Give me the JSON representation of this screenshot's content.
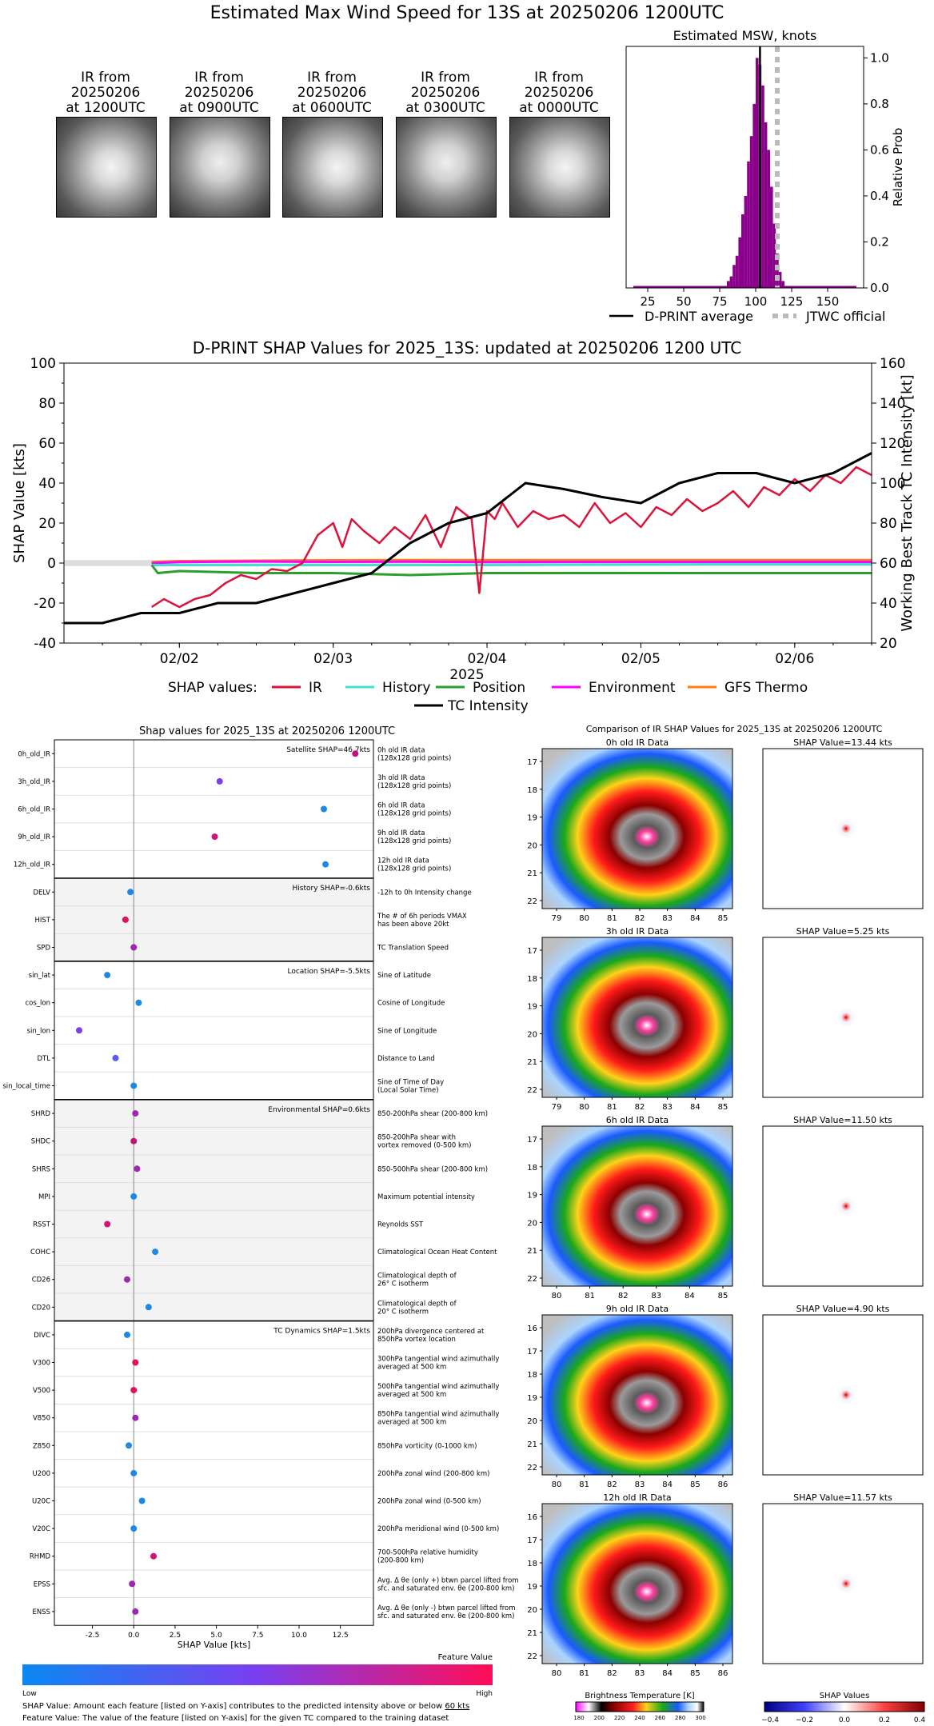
{
  "main_title": "Estimated Max Wind Speed for 13S at 20250206 1200UTC",
  "satellite_panels": [
    {
      "l1": "IR from",
      "l2": "20250206",
      "l3": "at 1200UTC"
    },
    {
      "l1": "IR from",
      "l2": "20250206",
      "l3": "at 0900UTC"
    },
    {
      "l1": "IR from",
      "l2": "20250206",
      "l3": "at 0600UTC"
    },
    {
      "l1": "IR from",
      "l2": "20250206",
      "l3": "at 0300UTC"
    },
    {
      "l1": "IR from",
      "l2": "20250206",
      "l3": "at 0000UTC"
    }
  ],
  "chart_data": [
    {
      "type": "bar",
      "title": "Estimated MSW, knots",
      "ylabel": "Relative Prob",
      "xlim": [
        10,
        175
      ],
      "ylim": [
        0,
        1.05
      ],
      "xticks": [
        "25",
        "50",
        "75",
        "100",
        "125",
        "150"
      ],
      "yticks": [
        "0.0",
        "0.2",
        "0.4",
        "0.6",
        "0.8",
        "1.0"
      ],
      "bin_width": 2,
      "bins": [
        80,
        82,
        84,
        86,
        88,
        90,
        92,
        94,
        96,
        98,
        100,
        102,
        104,
        106,
        108,
        110,
        112,
        114,
        116,
        118
      ],
      "values": [
        0.03,
        0.05,
        0.1,
        0.14,
        0.22,
        0.32,
        0.4,
        0.55,
        0.66,
        0.8,
        1.0,
        0.97,
        0.88,
        0.72,
        0.6,
        0.44,
        0.28,
        0.15,
        0.07,
        0.03
      ],
      "baseline_range": [
        15,
        170
      ],
      "dprint_average": 103,
      "jtwc_official": 115,
      "legend": [
        "D-PRINT average",
        "JTWC official"
      ],
      "color": "#8b008b"
    },
    {
      "type": "line",
      "title": "D-PRINT SHAP Values for 2025_13S: updated at 20250206 1200 UTC",
      "xlabel": "2025",
      "ylabel": "SHAP Value [kts]",
      "y2label": "Working Best Track TC Intensity [kt]",
      "xlim": [
        1.25,
        6.5
      ],
      "ylim": [
        -40,
        100
      ],
      "y2lim": [
        20,
        160
      ],
      "xticks": [
        "02/02",
        "02/03",
        "02/04",
        "02/05",
        "02/06"
      ],
      "yticks": [
        "-40",
        "-20",
        "0",
        "20",
        "40",
        "60",
        "80",
        "100"
      ],
      "y2ticks": [
        "20",
        "40",
        "60",
        "80",
        "100",
        "120",
        "140",
        "160"
      ],
      "legend_prefix": "SHAP values:",
      "series": [
        {
          "name": "IR",
          "color": "#dc143c",
          "x": [
            1.82,
            1.9,
            2.0,
            2.1,
            2.2,
            2.3,
            2.4,
            2.5,
            2.6,
            2.7,
            2.8,
            2.9,
            3.0,
            3.06,
            3.12,
            3.2,
            3.3,
            3.4,
            3.5,
            3.6,
            3.7,
            3.8,
            3.9,
            3.95,
            4.0,
            4.05,
            4.1,
            4.2,
            4.3,
            4.4,
            4.5,
            4.6,
            4.7,
            4.8,
            4.9,
            5.0,
            5.1,
            5.2,
            5.3,
            5.4,
            5.5,
            5.6,
            5.7,
            5.8,
            5.9,
            6.0,
            6.1,
            6.2,
            6.3,
            6.4,
            6.5
          ],
          "y": [
            -22,
            -18,
            -22,
            -18,
            -16,
            -10,
            -6,
            -8,
            -3,
            -4,
            0,
            14,
            20,
            8,
            22,
            16,
            10,
            18,
            12,
            24,
            8,
            28,
            22,
            -15,
            26,
            22,
            30,
            18,
            26,
            22,
            24,
            18,
            30,
            20,
            25,
            18,
            28,
            24,
            32,
            26,
            30,
            36,
            28,
            38,
            34,
            42,
            36,
            44,
            40,
            48,
            44
          ]
        },
        {
          "name": "History",
          "color": "#40e0d0",
          "x": [
            1.82,
            2.0,
            2.5,
            3.0,
            3.5,
            4.0,
            4.5,
            5.0,
            5.5,
            6.0,
            6.5
          ],
          "y": [
            -1,
            -1,
            -1,
            -1,
            -1,
            -1,
            -0.8,
            -0.7,
            -0.6,
            -0.6,
            -0.6
          ]
        },
        {
          "name": "Position",
          "color": "#2ca02c",
          "x": [
            1.82,
            1.86,
            2.0,
            2.5,
            3.0,
            3.5,
            4.0,
            4.5,
            5.0,
            5.5,
            6.0,
            6.5
          ],
          "y": [
            -1,
            -5,
            -4,
            -5,
            -5,
            -6,
            -5,
            -5,
            -5,
            -5,
            -5,
            -5
          ]
        },
        {
          "name": "Environment",
          "color": "#ff00ff",
          "x": [
            1.82,
            2.0,
            2.5,
            3.0,
            3.5,
            4.0,
            4.5,
            5.0,
            5.5,
            6.0,
            6.5
          ],
          "y": [
            0,
            0.5,
            0.8,
            0.6,
            0.7,
            0.5,
            0.6,
            0.6,
            0.6,
            0.6,
            0.6
          ]
        },
        {
          "name": "GFS Thermo",
          "color": "#ff7f0e",
          "x": [
            1.82,
            2.0,
            2.5,
            3.0,
            3.5,
            4.0,
            4.5,
            5.0,
            5.5,
            6.0,
            6.5
          ],
          "y": [
            0.5,
            1,
            1.2,
            1.4,
            1.5,
            1.5,
            1.5,
            1.5,
            1.5,
            1.5,
            1.5
          ]
        }
      ],
      "intensity": {
        "name": "TC Intensity",
        "color": "#000000",
        "x": [
          1.25,
          1.5,
          1.75,
          2.0,
          2.25,
          2.5,
          2.75,
          3.0,
          3.25,
          3.5,
          3.75,
          4.0,
          4.25,
          4.5,
          4.75,
          5.0,
          5.25,
          5.5,
          5.75,
          6.0,
          6.25,
          6.5
        ],
        "y": [
          30,
          30,
          35,
          35,
          40,
          40,
          45,
          50,
          55,
          70,
          80,
          85,
          100,
          97,
          93,
          90,
          100,
          105,
          105,
          100,
          105,
          115
        ]
      }
    },
    {
      "type": "scatter",
      "title": "Shap values for 2025_13S at 20250206 1200UTC",
      "xlabel": "SHAP Value [kts]",
      "xlim": [
        -4.8,
        14.5
      ],
      "xticks": [
        "-2.5",
        "0.0",
        "2.5",
        "5.0",
        "7.5",
        "10.0",
        "12.5"
      ],
      "colorbar": {
        "title": "Feature Value",
        "low": "Low",
        "high": "High"
      },
      "groups": [
        {
          "label": "Satellite SHAP=46.7kts",
          "shaded": false,
          "features": [
            {
              "name": "0h_old_IR",
              "value": 13.4,
              "desc1": "0h old IR data",
              "desc2": "(128x128 grid points)",
              "color": "#c2127a"
            },
            {
              "name": "3h_old_IR",
              "value": 5.2,
              "desc1": "3h old IR data",
              "desc2": "(128x128 grid points)",
              "color": "#7b3fe4"
            },
            {
              "name": "6h_old_IR",
              "value": 11.5,
              "desc1": "6h old IR data",
              "desc2": "(128x128 grid points)",
              "color": "#1e88e5"
            },
            {
              "name": "9h_old_IR",
              "value": 4.9,
              "desc1": "9h old IR data",
              "desc2": "(128x128 grid points)",
              "color": "#d0137a"
            },
            {
              "name": "12h_old_IR",
              "value": 11.6,
              "desc1": "12h old IR data",
              "desc2": "(128x128 grid points)",
              "color": "#1e88e5"
            }
          ]
        },
        {
          "label": "History SHAP=-0.6kts",
          "shaded": true,
          "features": [
            {
              "name": "DELV",
              "value": -0.2,
              "desc1": "-12h to 0h Intensity change",
              "desc2": "",
              "color": "#1e88e5"
            },
            {
              "name": "HIST",
              "value": -0.5,
              "desc1": "The # of 6h periods VMAX",
              "desc2": "has been above 20kt",
              "color": "#e0115f"
            },
            {
              "name": "SPD",
              "value": 0.0,
              "desc1": "TC Translation Speed",
              "desc2": "",
              "color": "#9c27b0"
            }
          ]
        },
        {
          "label": "Location SHAP=-5.5kts",
          "shaded": false,
          "features": [
            {
              "name": "sin_lat",
              "value": -1.6,
              "desc1": "Sine of Latitude",
              "desc2": "",
              "color": "#1e88e5"
            },
            {
              "name": "cos_lon",
              "value": 0.3,
              "desc1": "Cosine of Longitude",
              "desc2": "",
              "color": "#1e88e5"
            },
            {
              "name": "sin_lon",
              "value": -3.3,
              "desc1": "Sine of Longitude",
              "desc2": "",
              "color": "#7b3fe4"
            },
            {
              "name": "DTL",
              "value": -1.1,
              "desc1": "Distance to Land",
              "desc2": "",
              "color": "#5a5af0"
            },
            {
              "name": "sin_local_time",
              "value": 0.0,
              "desc1": "Sine of Time of Day",
              "desc2": "(Local Solar Time)",
              "color": "#1e88e5"
            }
          ]
        },
        {
          "label": "Environmental SHAP=0.6kts",
          "shaded": true,
          "features": [
            {
              "name": "SHRD",
              "value": 0.1,
              "desc1": "850-200hPa shear (200-800 km)",
              "desc2": "",
              "color": "#9c27b0"
            },
            {
              "name": "SHDC",
              "value": 0.0,
              "desc1": "850-200hPa shear with",
              "desc2": "vortex removed (0-500 km)",
              "color": "#c2127a"
            },
            {
              "name": "SHRS",
              "value": 0.2,
              "desc1": "850-500hPa shear (200-800 km)",
              "desc2": "",
              "color": "#9c27b0"
            },
            {
              "name": "MPI",
              "value": 0.0,
              "desc1": "Maximum potential intensity",
              "desc2": "",
              "color": "#1e88e5"
            },
            {
              "name": "RSST",
              "value": -1.6,
              "desc1": "Reynolds SST",
              "desc2": "",
              "color": "#d0137a"
            },
            {
              "name": "COHC",
              "value": 1.3,
              "desc1": "Climatological Ocean Heat Content",
              "desc2": "",
              "color": "#1e88e5"
            },
            {
              "name": "CD26",
              "value": -0.4,
              "desc1": "Climatological depth of",
              "desc2": "26° C isotherm",
              "color": "#9c27b0"
            },
            {
              "name": "CD20",
              "value": 0.9,
              "desc1": "Climatological depth of",
              "desc2": "20° C isotherm",
              "color": "#1e88e5"
            }
          ]
        },
        {
          "label": "TC Dynamics SHAP=1.5kts",
          "shaded": false,
          "features": [
            {
              "name": "DIVC",
              "value": -0.4,
              "desc1": "200hPa divergence centered at",
              "desc2": "850hPa vortex location",
              "color": "#1e88e5"
            },
            {
              "name": "V300",
              "value": 0.1,
              "desc1": "300hPa tangential wind azimuthally",
              "desc2": "averaged at 500 km",
              "color": "#e0115f"
            },
            {
              "name": "V500",
              "value": 0.0,
              "desc1": "500hPa tangential wind azimuthally",
              "desc2": "averaged at 500 km",
              "color": "#e0115f"
            },
            {
              "name": "V850",
              "value": 0.1,
              "desc1": "850hPa tangential wind azimuthally",
              "desc2": "averaged at 500 km",
              "color": "#9c27b0"
            },
            {
              "name": "Z850",
              "value": -0.3,
              "desc1": "850hPa vorticity (0-1000 km)",
              "desc2": "",
              "color": "#1e88e5"
            },
            {
              "name": "U200",
              "value": 0.0,
              "desc1": "200hPa zonal wind (200-800 km)",
              "desc2": "",
              "color": "#1e88e5"
            },
            {
              "name": "U20C",
              "value": 0.5,
              "desc1": "200hPa zonal wind (0-500 km)",
              "desc2": "",
              "color": "#1e88e5"
            },
            {
              "name": "V20C",
              "value": 0.0,
              "desc1": "200hPa meridional wind (0-500 km)",
              "desc2": "",
              "color": "#1e88e5"
            },
            {
              "name": "RHMD",
              "value": 1.2,
              "desc1": "700-500hPa relative humidity",
              "desc2": "(200-800 km)",
              "color": "#d0137a"
            },
            {
              "name": "EPSS",
              "value": -0.1,
              "desc1": "Avg. Δ θe (only +) btwn parcel lifted from",
              "desc2": "sfc. and saturated env. θe (200-800 km)",
              "color": "#9c27b0"
            },
            {
              "name": "ENSS",
              "value": 0.1,
              "desc1": "Avg. Δ θe (only -) btwn parcel lifted from",
              "desc2": "sfc. and saturated env. θe (200-800 km)",
              "color": "#9c27b0"
            }
          ]
        }
      ]
    },
    {
      "type": "heatmap",
      "title": "Comparison of IR SHAP Values for 2025_13S at 20250206 1200UTC",
      "colorbar_left": {
        "title": "Brightness Temperature [K]",
        "ticks": [
          "180",
          "200",
          "220",
          "240",
          "260",
          "280",
          "300"
        ]
      },
      "colorbar_right": {
        "title": "SHAP Values",
        "ticks": [
          "−0.4",
          "−0.2",
          "0.0",
          "0.2",
          "0.4"
        ]
      },
      "panels": [
        {
          "ir_title": "0h old IR Data",
          "shap_title": "SHAP Value=13.44 kts",
          "yticks": [
            "-17",
            "-18",
            "-19",
            "-20",
            "-21",
            "-22"
          ],
          "xticks": [
            "79",
            "80",
            "81",
            "82",
            "83",
            "84",
            "85"
          ]
        },
        {
          "ir_title": "3h old IR Data",
          "shap_title": "SHAP Value=5.25 kts",
          "yticks": [
            "-17",
            "-18",
            "-19",
            "-20",
            "-21",
            "-22"
          ],
          "xticks": [
            "79",
            "80",
            "81",
            "82",
            "83",
            "84",
            "85"
          ]
        },
        {
          "ir_title": "6h old IR Data",
          "shap_title": "SHAP Value=11.50 kts",
          "yticks": [
            "-17",
            "-18",
            "-19",
            "-20",
            "-21",
            "-22"
          ],
          "xticks": [
            "80",
            "81",
            "82",
            "83",
            "84",
            "85"
          ]
        },
        {
          "ir_title": "9h old IR Data",
          "shap_title": "SHAP Value=4.90 kts",
          "yticks": [
            "-16",
            "-17",
            "-18",
            "-19",
            "-20",
            "-21",
            "-22"
          ],
          "xticks": [
            "80",
            "81",
            "82",
            "83",
            "84",
            "85",
            "86"
          ]
        },
        {
          "ir_title": "12h old IR Data",
          "shap_title": "SHAP Value=11.57 kts",
          "yticks": [
            "-16",
            "-17",
            "-18",
            "-19",
            "-20",
            "-21",
            "-22"
          ],
          "xticks": [
            "80",
            "81",
            "82",
            "83",
            "84",
            "85",
            "86"
          ]
        }
      ]
    }
  ],
  "footnotes": {
    "line1_a": "SHAP Value: Amount each feature [listed on Y-axis] contributes to the predicted intensity above or below ",
    "line1_b": "60 kts",
    "line2": "Feature Value: The value of the feature [listed on Y-axis] for the given TC compared to the training dataset"
  }
}
